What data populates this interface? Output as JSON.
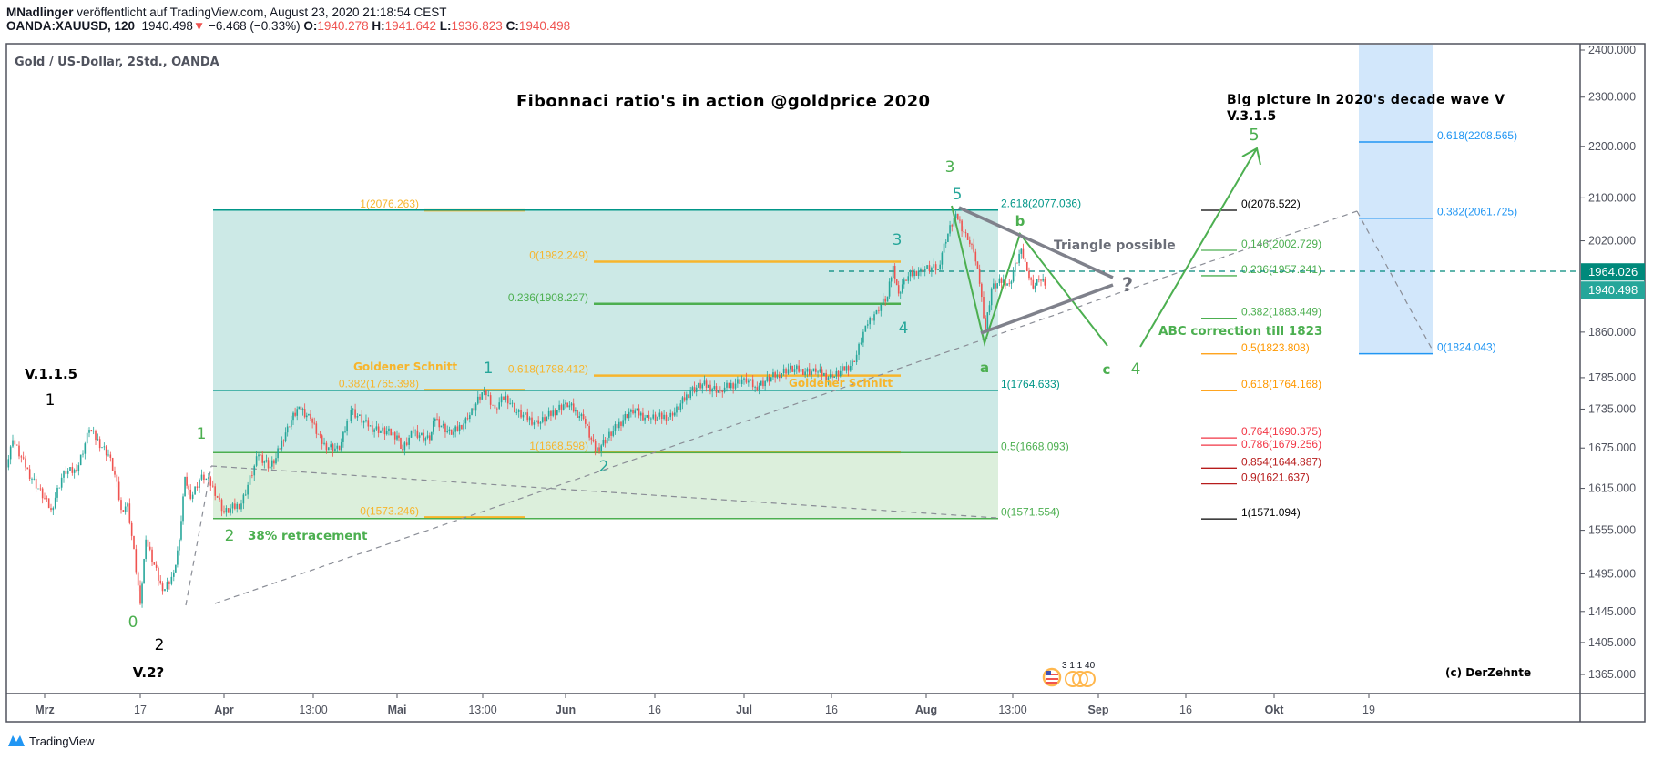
{
  "header": {
    "author": "MNadlinger",
    "published": " veröffentlicht auf TradingView.com, August 23, 2020 21:18:54 CEST",
    "symbol": "OANDA:XAUUSD, 120",
    "last": "1940.498",
    "change": "−6.468 (−0.33%)",
    "o_label": "O:",
    "o": "1940.278",
    "h_label": "H:",
    "h": "1941.642",
    "l_label": "L:",
    "l": "1936.823",
    "c_label": "C:",
    "c": "1940.498"
  },
  "chart": {
    "legend": "Gold  / US-Dollar, 2Std., OANDA",
    "watermark": "(c) DerZehnte",
    "event_badge": "3 1 1 40",
    "branding": "TradingView"
  },
  "annotations": {
    "title": "Fibonnaci ratio's in action @goldprice 2020",
    "big_picture_1": "Big picture in 2020's decade wave V",
    "big_picture_2": "V.3.1.5",
    "triangle": "Triangle possible",
    "question": "?",
    "abc": "ABC correction till 1823",
    "retracement": "38% retracement",
    "golden_1": "Goldener Schnitt",
    "golden_2": "Goldener Schnitt",
    "v115": "V.1.1.5",
    "v2": "V.2?",
    "black_1": "1",
    "black_2": "2",
    "green_0": "0",
    "green_1": "1",
    "green_2": "2",
    "teal_1": "1",
    "teal_2": "2",
    "teal_3": "3",
    "teal_4": "4",
    "teal_5": "5",
    "green_3": "3",
    "green_a": "a",
    "green_b": "b",
    "green_c": "c",
    "green_4": "4",
    "green_5": "5"
  },
  "fib_groups": {
    "left": [
      {
        "label": "1(2076.263)",
        "color": "#f7b52c"
      },
      {
        "label": "0.382(1765.398)",
        "color": "#f7b52c"
      },
      {
        "label": "0(1573.246)",
        "color": "#f7b52c"
      }
    ],
    "mid": [
      {
        "label": "0(1982.249)",
        "color": "#f7b52c"
      },
      {
        "label": "0.236(1908.227)",
        "color": "#4caf50"
      },
      {
        "label": "0.618(1788.412)",
        "color": "#f7b52c"
      },
      {
        "label": "1(1668.598)",
        "color": "#f7b52c"
      }
    ],
    "box": [
      {
        "label": "2.618(2077.036)",
        "color": "#009688"
      },
      {
        "label": "1(1764.633)",
        "color": "#009688"
      },
      {
        "label": "0.5(1668.093)",
        "color": "#4caf50"
      },
      {
        "label": "0(1571.554)",
        "color": "#4caf50"
      }
    ],
    "right": [
      {
        "label": "0(2076.522)",
        "color": "#000000"
      },
      {
        "label": "0.146(2002.729)",
        "color": "#4caf50"
      },
      {
        "label": "0.236(1957.241)",
        "color": "#4caf50"
      },
      {
        "label": "0.382(1883.449)",
        "color": "#4caf50"
      },
      {
        "label": "0.5(1823.808)",
        "color": "#ff9800"
      },
      {
        "label": "0.618(1764.168)",
        "color": "#ff9800"
      },
      {
        "label": "0.764(1690.375)",
        "color": "#f23645"
      },
      {
        "label": "0.786(1679.256)",
        "color": "#f23645"
      },
      {
        "label": "0.854(1644.887)",
        "color": "#b71c1c"
      },
      {
        "label": "0.9(1621.637)",
        "color": "#b71c1c"
      },
      {
        "label": "1(1571.094)",
        "color": "#000000"
      }
    ],
    "blue": [
      {
        "label": "0.618(2208.565)",
        "color": "#2196f3"
      },
      {
        "label": "0.382(2061.725)",
        "color": "#2196f3"
      },
      {
        "label": "0(1824.043)",
        "color": "#2196f3"
      }
    ]
  },
  "chart_data": {
    "type": "candlestick",
    "y_scale": "log",
    "ylim": [
      1340,
      2420
    ],
    "up_color": "#26a69a",
    "down_color": "#ef5350",
    "x_ticks": [
      "Mrz",
      "17",
      "Apr",
      "13:00",
      "Mai",
      "13:00",
      "Jun",
      "16",
      "Jul",
      "16",
      "Aug",
      "13:00",
      "Sep",
      "16",
      "Okt",
      "19"
    ],
    "y_ticks": [
      2400,
      2300,
      2200,
      2100,
      2020,
      1860,
      1785,
      1735,
      1675,
      1615,
      1555,
      1495,
      1445,
      1405,
      1365
    ],
    "price_labels": [
      {
        "value": "1964.026",
        "color": "#00897b"
      },
      {
        "value": "1940.498",
        "color": "#26a69a"
      }
    ],
    "series": [
      [
        "2020-02-25",
        1646
      ],
      [
        "2020-02-26",
        1687
      ],
      [
        "2020-02-28",
        1646
      ],
      [
        "2020-03-03",
        1584
      ],
      [
        "2020-03-05",
        1640
      ],
      [
        "2020-03-07",
        1640
      ],
      [
        "2020-03-09",
        1703
      ],
      [
        "2020-03-12",
        1665
      ],
      [
        "2020-03-13",
        1635
      ],
      [
        "2020-03-14",
        1584
      ],
      [
        "2020-03-15",
        1593
      ],
      [
        "2020-03-17",
        1455
      ],
      [
        "2020-03-18",
        1542
      ],
      [
        "2020-03-21",
        1472
      ],
      [
        "2020-03-23",
        1497
      ],
      [
        "2020-03-24",
        1542
      ],
      [
        "2020-03-25",
        1632
      ],
      [
        "2020-03-26",
        1600
      ],
      [
        "2020-03-28",
        1635
      ],
      [
        "2020-03-30",
        1618
      ],
      [
        "2020-04-01",
        1580
      ],
      [
        "2020-04-04",
        1593
      ],
      [
        "2020-04-07",
        1665
      ],
      [
        "2020-04-09",
        1647
      ],
      [
        "2020-04-10",
        1660
      ],
      [
        "2020-04-12",
        1708
      ],
      [
        "2020-04-14",
        1739
      ],
      [
        "2020-04-16",
        1720
      ],
      [
        "2020-04-18",
        1681
      ],
      [
        "2020-04-21",
        1672
      ],
      [
        "2020-04-23",
        1734
      ],
      [
        "2020-04-26",
        1708
      ],
      [
        "2020-05-01",
        1694
      ],
      [
        "2020-05-02",
        1672
      ],
      [
        "2020-05-04",
        1701
      ],
      [
        "2020-05-07",
        1687
      ],
      [
        "2020-05-08",
        1720
      ],
      [
        "2020-05-11",
        1695
      ],
      [
        "2020-05-14",
        1720
      ],
      [
        "2020-05-17",
        1764
      ],
      [
        "2020-05-19",
        1736
      ],
      [
        "2020-05-21",
        1756
      ],
      [
        "2020-05-23",
        1730
      ],
      [
        "2020-05-27",
        1712
      ],
      [
        "2020-06-01",
        1745
      ],
      [
        "2020-06-04",
        1720
      ],
      [
        "2020-06-06",
        1670
      ],
      [
        "2020-06-09",
        1701
      ],
      [
        "2020-06-12",
        1734
      ],
      [
        "2020-06-15",
        1720
      ],
      [
        "2020-06-19",
        1725
      ],
      [
        "2020-06-22",
        1764
      ],
      [
        "2020-06-24",
        1774
      ],
      [
        "2020-06-27",
        1764
      ],
      [
        "2020-07-01",
        1784
      ],
      [
        "2020-07-03",
        1770
      ],
      [
        "2020-07-07",
        1790
      ],
      [
        "2020-07-09",
        1799
      ],
      [
        "2020-07-14",
        1794
      ],
      [
        "2020-07-17",
        1785
      ],
      [
        "2020-07-21",
        1810
      ],
      [
        "2020-07-23",
        1871
      ],
      [
        "2020-07-25",
        1897
      ],
      [
        "2020-07-27",
        1921
      ],
      [
        "2020-07-28",
        1975
      ],
      [
        "2020-07-29",
        1926
      ],
      [
        "2020-07-30",
        1950
      ],
      [
        "2020-08-02",
        1970
      ],
      [
        "2020-08-05",
        1970
      ],
      [
        "2020-08-06",
        2015
      ],
      [
        "2020-08-08",
        2070
      ],
      [
        "2020-08-10",
        2021
      ],
      [
        "2020-08-11",
        2000
      ],
      [
        "2020-08-12",
        1943
      ],
      [
        "2020-08-13",
        1866
      ],
      [
        "2020-08-14",
        1935
      ],
      [
        "2020-08-16",
        1950
      ],
      [
        "2020-08-17",
        1943
      ],
      [
        "2020-08-19",
        2005
      ],
      [
        "2020-08-20",
        1965
      ],
      [
        "2020-08-21",
        1935
      ],
      [
        "2020-08-22",
        1950
      ],
      [
        "2020-08-23",
        1940
      ]
    ]
  }
}
